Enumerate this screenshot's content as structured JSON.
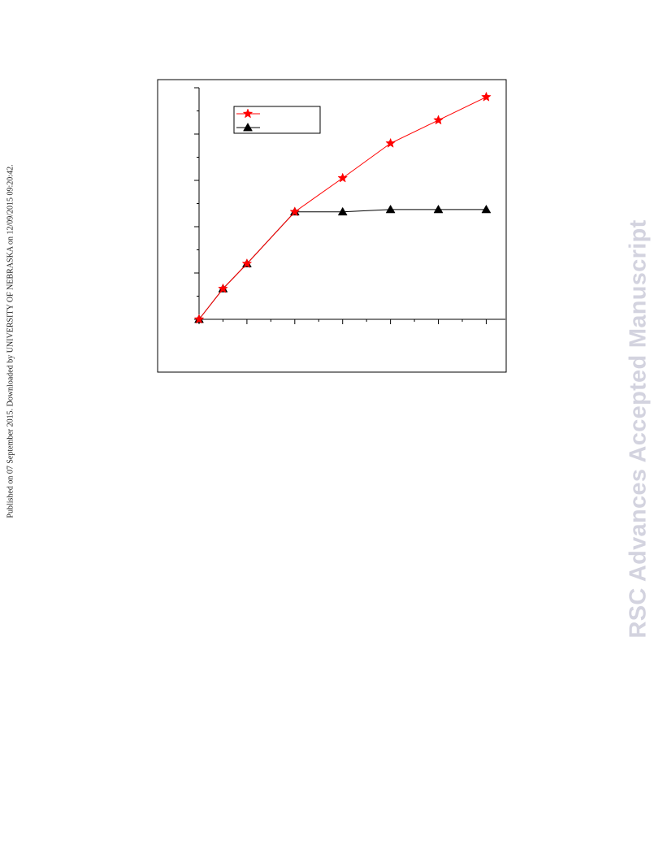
{
  "page": {
    "side_note": "Published on 07 September 2015. Downloaded by UNIVERSITY OF NEBRASKA on 12/09/2015 09:20:42.",
    "watermark": "RSC Advances Accepted Manuscript",
    "watermark_color": "#d3d3df"
  },
  "chart_data": {
    "type": "line",
    "title": "",
    "xlabel": "",
    "ylabel": "",
    "x": [
      0,
      0.5,
      1,
      2,
      3,
      4,
      5,
      6
    ],
    "xlim": [
      0,
      6.4
    ],
    "ylim": [
      0,
      5
    ],
    "x_major_ticks": [
      0,
      1,
      2,
      3,
      4,
      5,
      6
    ],
    "x_minor_ticks": [
      0.5,
      1.5,
      2.5,
      3.5,
      4.5,
      5.5
    ],
    "y_major_ticks": [
      0,
      1,
      2,
      3,
      4,
      5
    ],
    "y_minor_ticks": [
      0.5,
      1.5,
      2.5,
      3.5,
      4.5
    ],
    "grid": false,
    "legend_position": "top-left",
    "series": [
      {
        "values": [
          0,
          0.66,
          1.2,
          2.32,
          3.05,
          3.8,
          4.3,
          4.8
        ],
        "color": "#ff0000",
        "marker": "star"
      },
      {
        "values": [
          0,
          0.66,
          1.2,
          2.32,
          2.32,
          2.37,
          2.37,
          2.37
        ],
        "color": "#000000",
        "marker": "triangle"
      }
    ]
  }
}
